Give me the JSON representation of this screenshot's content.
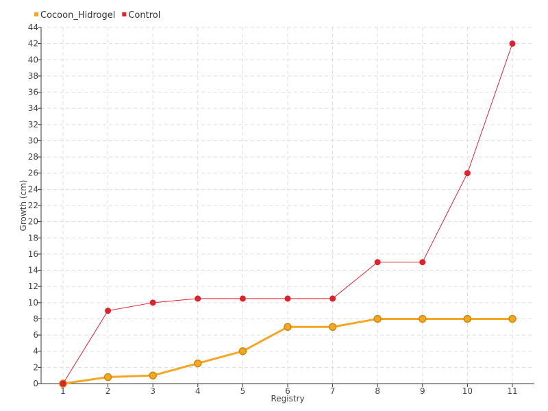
{
  "chart_data": {
    "type": "line",
    "title": "",
    "xlabel": "Registry",
    "ylabel": "Growth (cm)",
    "categories": [
      "1",
      "2",
      "3",
      "4",
      "5",
      "6",
      "7",
      "8",
      "9",
      "10",
      "11"
    ],
    "ylim": [
      0,
      44
    ],
    "ytick_step": 2,
    "grid": true,
    "legend": "top-left",
    "series": [
      {
        "name": "Cocoon_Hidrogel",
        "color": "#f5a623",
        "values": [
          0,
          0.8,
          1,
          2.5,
          4,
          7,
          7,
          8,
          8,
          8,
          8
        ]
      },
      {
        "name": "Control",
        "color": "#e0202a",
        "values": [
          0,
          9,
          10,
          10.5,
          10.5,
          10.5,
          10.5,
          15,
          15,
          26,
          42
        ]
      }
    ]
  }
}
